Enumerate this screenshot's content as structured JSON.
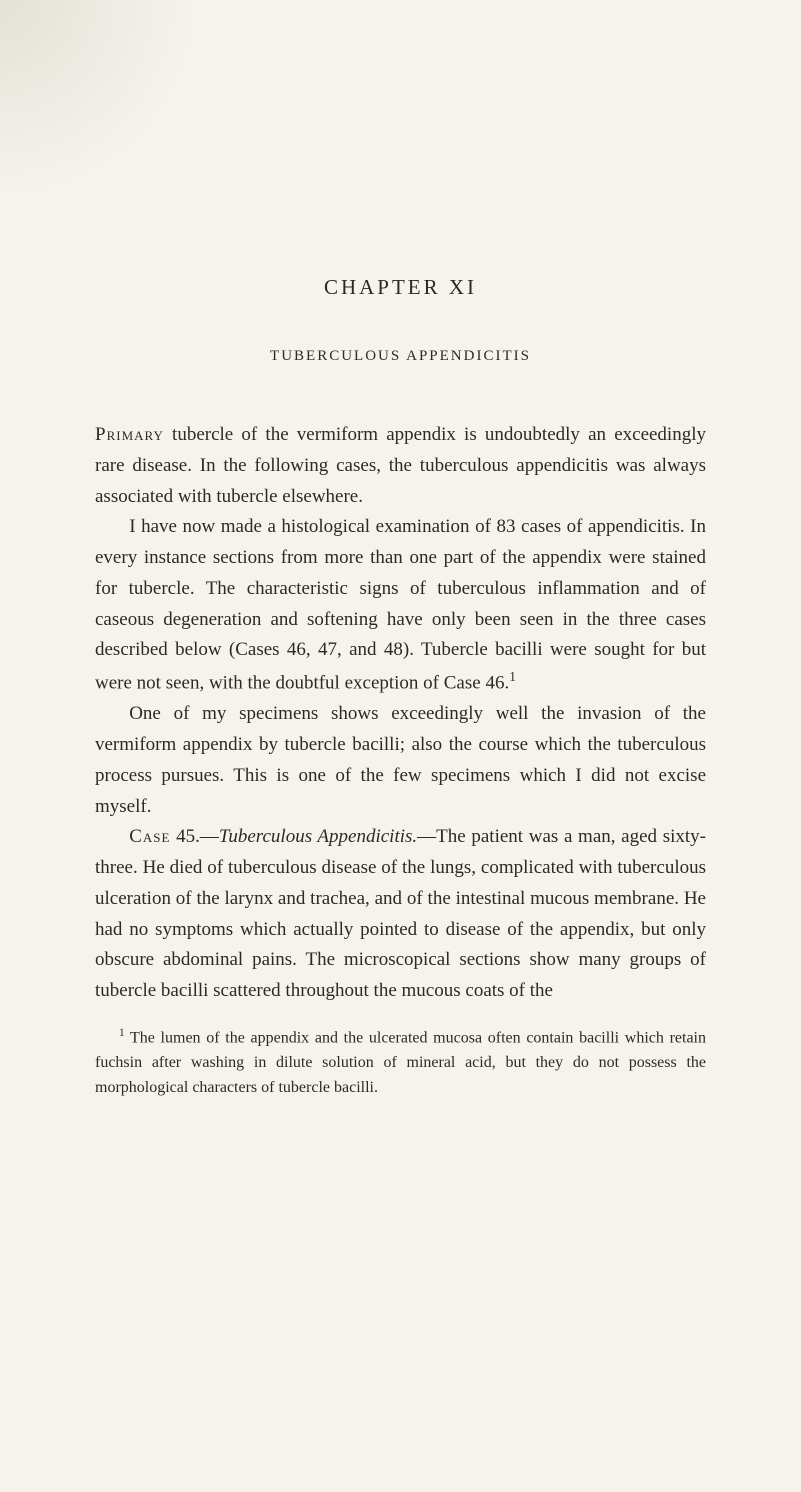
{
  "chapter_heading": "CHAPTER XI",
  "subtitle": "TUBERCULOUS APPENDICITIS",
  "paragraphs": {
    "p1_lead": "Primary",
    "p1_rest": " tubercle of the vermiform appendix is undoubtedly an exceedingly rare disease. In the following cases, the tuberculous appendicitis was always associated with tubercle elsewhere.",
    "p2": "I have now made a histological examination of 83 cases of appendicitis. In every instance sections from more than one part of the appendix were stained for tubercle. The characteristic signs of tuberculous inflammation and of caseous degeneration and softening have only been seen in the three cases described below (Cases 46, 47, and 48). Tubercle bacilli were sought for but were not seen, with the doubtful exception of Case 46.",
    "p2_sup": "1",
    "p3": "One of my specimens shows exceedingly well the invasion of the vermiform appendix by tubercle bacilli; also the course which the tuberculous process pursues. This is one of the few specimens which I did not excise myself.",
    "p4_lead": "Case",
    "p4_num": " 45.—",
    "p4_italic": "Tuberculous Appendicitis.",
    "p4_rest": "—The patient was a man, aged sixty-three. He died of tuberculous disease of the lungs, complicated with tuberculous ulceration of the larynx and trachea, and of the intestinal mucous membrane. He had no symptoms which actually pointed to disease of the appendix, but only obscure abdominal pains. The microscopical sections show many groups of tubercle bacilli scattered throughout the mucous coats of the"
  },
  "footnote": {
    "sup": "1",
    "text": " The lumen of the appendix and the ulcerated mucosa often contain bacilli which retain fuchsin after washing in dilute solution of mineral acid, but they do not possess the morphological characters of tubercle bacilli."
  }
}
